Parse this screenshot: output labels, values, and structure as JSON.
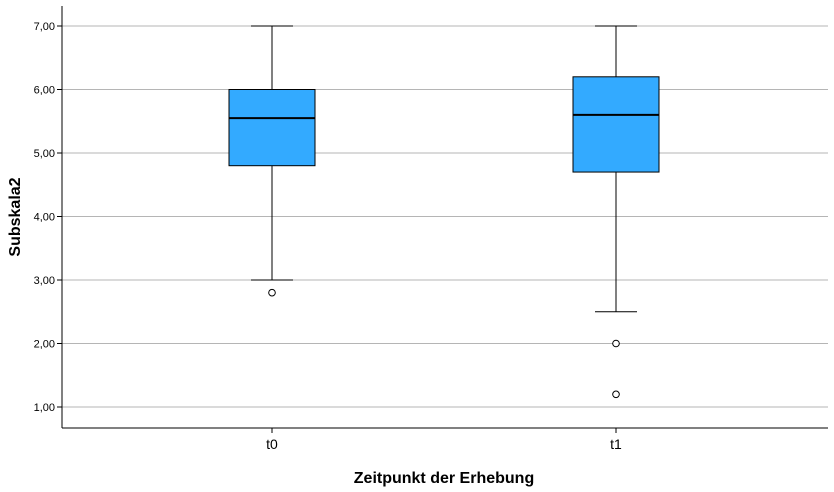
{
  "chart_data": {
    "type": "boxplot",
    "xlabel": "Zeitpunkt der Erhebung",
    "ylabel": "Subskala2",
    "ylim": [
      0.7,
      7.3
    ],
    "yticks": [
      1,
      2,
      3,
      4,
      5,
      6,
      7
    ],
    "ytick_labels": [
      "1,00",
      "2,00",
      "3,00",
      "4,00",
      "5,00",
      "6,00",
      "7,00"
    ],
    "grid": true,
    "legend": "none",
    "colors": {
      "box_fill": "#33aaff",
      "box_stroke": "#000000",
      "grid": "#b5b5b5",
      "axis": "#000000"
    },
    "categories": [
      "t0",
      "t1"
    ],
    "boxes": [
      {
        "category": "t0",
        "whisker_low": 3.0,
        "q1": 4.8,
        "median": 5.55,
        "q3": 6.0,
        "whisker_high": 7.0,
        "outliers": [
          2.8
        ]
      },
      {
        "category": "t1",
        "whisker_low": 2.5,
        "q1": 4.7,
        "median": 5.6,
        "q3": 6.2,
        "whisker_high": 7.0,
        "outliers": [
          2.0,
          1.2
        ]
      }
    ]
  }
}
